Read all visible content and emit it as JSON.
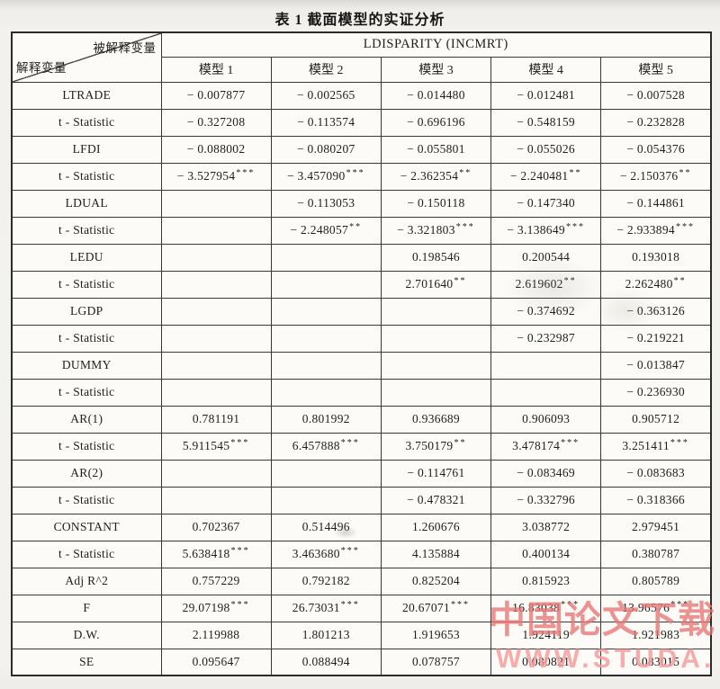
{
  "title": "表 1   截面模型的实证分析",
  "table": {
    "corner_top_right": "被解释变量",
    "corner_bottom_left": "解释变量",
    "dependent_header": "LDISPARITY (INCMRT)",
    "model_headers": [
      "模型 1",
      "模型 2",
      "模型 3",
      "模型 4",
      "模型 5"
    ],
    "rows": [
      {
        "label": "LTRADE",
        "cells": [
          "-0.007877",
          "-0.002565",
          "-0.014480",
          "-0.012481",
          "-0.007528"
        ]
      },
      {
        "label": "t - Statistic",
        "cells": [
          "-0.327208",
          "-0.113574",
          "-0.696196",
          "-0.548159",
          "-0.232828"
        ]
      },
      {
        "label": "LFDI",
        "cells": [
          "-0.088002",
          "-0.080207",
          "-0.055801",
          "-0.055026",
          "-0.054376"
        ]
      },
      {
        "label": "t - Statistic",
        "cells": [
          "-3.527954***",
          "-3.457090***",
          "-2.362354**",
          "-2.240481**",
          "-2.150376**"
        ]
      },
      {
        "label": "LDUAL",
        "cells": [
          "",
          "-0.113053",
          "-0.150118",
          "-0.147340",
          "-0.144861"
        ]
      },
      {
        "label": "t - Statistic",
        "cells": [
          "",
          "-2.248057**",
          "-3.321803***",
          "-3.138649***",
          "-2.933894***"
        ]
      },
      {
        "label": "LEDU",
        "cells": [
          "",
          "",
          "0.198546",
          "0.200544",
          "0.193018"
        ]
      },
      {
        "label": "t - Statistic",
        "cells": [
          "",
          "",
          "2.701640**",
          "2.619602**",
          "2.262480**"
        ]
      },
      {
        "label": "LGDP",
        "cells": [
          "",
          "",
          "",
          "-0.374692",
          "-0.363126"
        ]
      },
      {
        "label": "t - Statistic",
        "cells": [
          "",
          "",
          "",
          "-0.232987",
          "-0.219221"
        ]
      },
      {
        "label": "DUMMY",
        "cells": [
          "",
          "",
          "",
          "",
          "-0.013847"
        ]
      },
      {
        "label": "t - Statistic",
        "cells": [
          "",
          "",
          "",
          "",
          "-0.236930"
        ]
      },
      {
        "label": "AR(1)",
        "cells": [
          "0.781191",
          "0.801992",
          "0.936689",
          "0.906093",
          "0.905712"
        ]
      },
      {
        "label": "t - Statistic",
        "cells": [
          "5.911545***",
          "6.457888***",
          "3.750179**",
          "3.478174***",
          "3.251411***"
        ]
      },
      {
        "label": "AR(2)",
        "cells": [
          "",
          "",
          "-0.114761",
          "-0.083469",
          "-0.083683"
        ]
      },
      {
        "label": "t - Statistic",
        "cells": [
          "",
          "",
          "-0.478321",
          "-0.332796",
          "-0.318366"
        ]
      },
      {
        "label": "CONSTANT",
        "cells": [
          "0.702367",
          "0.514496",
          "1.260676",
          "3.038772",
          "2.979451"
        ]
      },
      {
        "label": "t - Statistic",
        "cells": [
          "5.638418***",
          "3.463680***",
          "4.135884",
          "0.400134",
          "0.380787"
        ]
      },
      {
        "label": "Adj R^2",
        "cells": [
          "0.757229",
          "0.792182",
          "0.825204",
          "0.815923",
          "0.805789"
        ]
      },
      {
        "label": "F",
        "cells": [
          "29.07198***",
          "26.73031***",
          "20.67071***",
          "16.83038***",
          "13.96576***"
        ]
      },
      {
        "label": "D.W.",
        "cells": [
          "2.119988",
          "1.801213",
          "1.919653",
          "1.924119",
          "1.921983"
        ]
      },
      {
        "label": "SE",
        "cells": [
          "0.095647",
          "0.088494",
          "0.078757",
          "0.080821",
          "0.083015"
        ]
      }
    ]
  },
  "watermark": {
    "line1": "中国论文下载",
    "line2": "WWW.STUDA.",
    "color_line1": "#e77676",
    "color_line2": "#f39d9d"
  }
}
